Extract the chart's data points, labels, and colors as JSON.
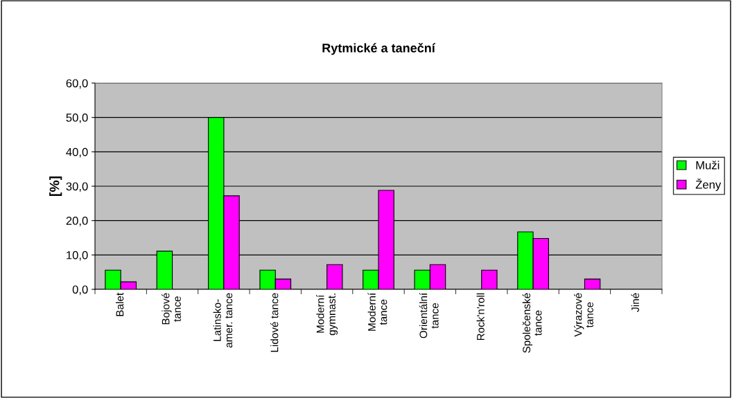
{
  "chart_data": {
    "type": "bar",
    "title": "Rytmické a taneční",
    "ylabel": "[%]",
    "categories": [
      "Balet",
      "Bojové\ntance",
      "Latinsko-\namer. tance",
      "Lidové tance",
      "Moderní\ngymnast.",
      "Moderní\ntance",
      "Orientální\ntance",
      "Rock'n'roll",
      "Společenské\ntance",
      "Výrazové\ntance",
      "Jiné"
    ],
    "series": [
      {
        "name": "Muži",
        "color": "#00ff00",
        "values": [
          5.6,
          11.1,
          50.0,
          5.6,
          null,
          5.6,
          5.6,
          null,
          16.7,
          null,
          null
        ]
      },
      {
        "name": "Ženy",
        "color": "#ff00ff",
        "values": [
          2.2,
          null,
          27.2,
          3.0,
          7.2,
          28.8,
          7.2,
          5.6,
          14.8,
          3.0,
          null
        ]
      }
    ],
    "ylim": [
      0,
      60
    ],
    "yticks": [
      {
        "value": 0,
        "label": "0,0"
      },
      {
        "value": 10,
        "label": "10,0"
      },
      {
        "value": 20,
        "label": "20,0"
      },
      {
        "value": 30,
        "label": "30,0"
      },
      {
        "value": 40,
        "label": "40,0"
      },
      {
        "value": 50,
        "label": "50,0"
      },
      {
        "value": 60,
        "label": "60,0"
      }
    ],
    "grid": "y",
    "legend": "right"
  }
}
